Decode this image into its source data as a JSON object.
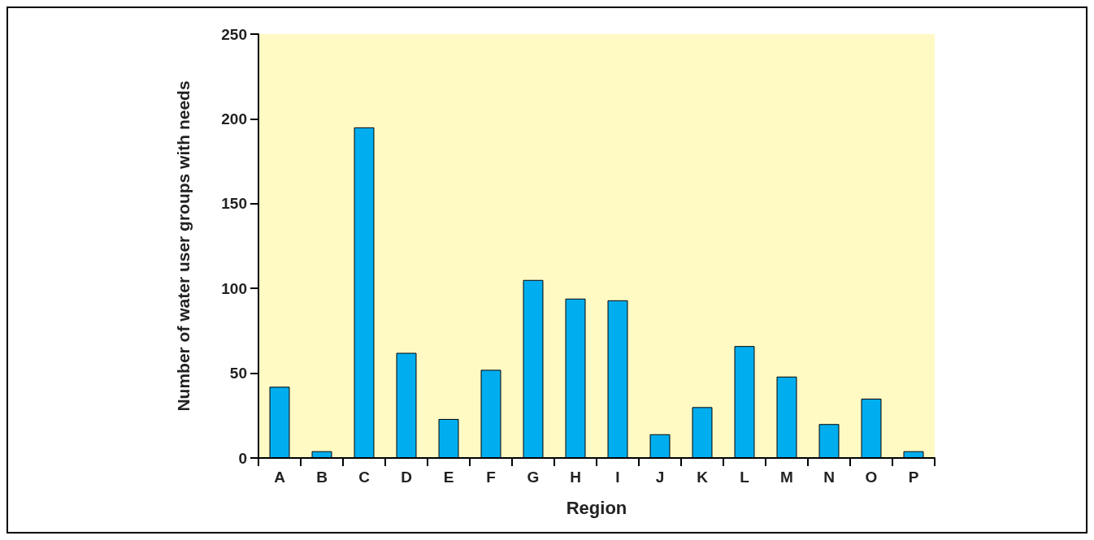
{
  "chart_data": {
    "type": "bar",
    "xlabel": "Region",
    "ylabel": "Number of water user groups with needs",
    "categories": [
      "A",
      "B",
      "C",
      "D",
      "E",
      "F",
      "G",
      "H",
      "I",
      "J",
      "K",
      "L",
      "M",
      "N",
      "O",
      "P"
    ],
    "values": [
      42,
      4,
      195,
      62,
      23,
      52,
      105,
      94,
      93,
      14,
      30,
      66,
      48,
      20,
      35,
      4
    ],
    "color": "#00aeef",
    "ylim": [
      0,
      250
    ],
    "yticks": [
      0,
      50,
      100,
      150,
      200,
      250
    ],
    "grid": false
  }
}
